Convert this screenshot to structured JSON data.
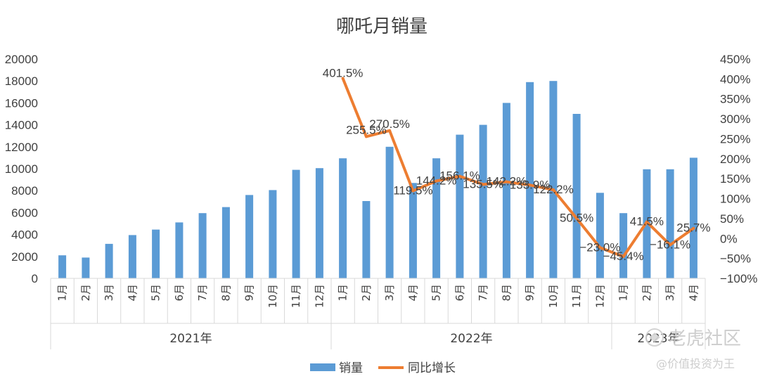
{
  "chart_data": {
    "type": "bar",
    "title": "哪吒月销量",
    "groups": [
      {
        "label": "2021年",
        "months": [
          "1月",
          "2月",
          "3月",
          "4月",
          "5月",
          "6月",
          "7月",
          "8月",
          "9月",
          "10月",
          "11月",
          "12月"
        ]
      },
      {
        "label": "2022年",
        "months": [
          "1月",
          "2月",
          "3月",
          "4月",
          "5月",
          "6月",
          "7月",
          "8月",
          "9月",
          "10月",
          "11月",
          "12月"
        ]
      },
      {
        "label": "2023年",
        "months": [
          "1月",
          "2月",
          "3月",
          "4月"
        ]
      }
    ],
    "series": [
      {
        "name": "销量",
        "type": "bar",
        "axis": "left",
        "color": "#5b9bd5",
        "values": [
          2100,
          1900,
          3150,
          3950,
          4450,
          5100,
          5950,
          6500,
          7600,
          8050,
          9900,
          10050,
          10950,
          7050,
          12000,
          8700,
          10950,
          13100,
          14000,
          16000,
          17900,
          18000,
          15000,
          7800,
          5950,
          9950,
          9950,
          11000
        ]
      },
      {
        "name": "同比增长",
        "type": "line",
        "axis": "right",
        "color": "#ed7d31",
        "values": [
          null,
          null,
          null,
          null,
          null,
          null,
          null,
          null,
          null,
          null,
          null,
          null,
          401.5,
          255.5,
          270.5,
          119.5,
          144.2,
          156.1,
          135.5,
          142.2,
          133.9,
          122.2,
          50.5,
          -23.0,
          -45.4,
          41.5,
          -16.1,
          25.7
        ],
        "labels": [
          null,
          null,
          null,
          null,
          null,
          null,
          null,
          null,
          null,
          null,
          null,
          null,
          "401.5%",
          "255.5%",
          "270.5%",
          "119.5%",
          "144.2%",
          "156.1%",
          "135.5%",
          "142.2%",
          "133.9%",
          "122.2%",
          "50.5%",
          "−23.0%",
          "−45.4%",
          "41.5%",
          "−16.1%",
          "25.7%"
        ]
      }
    ],
    "y_left": {
      "min": 0,
      "max": 20000,
      "ticks": [
        "0",
        "2000",
        "4000",
        "6000",
        "8000",
        "10000",
        "12000",
        "14000",
        "16000",
        "18000",
        "20000"
      ]
    },
    "y_right": {
      "min": -100,
      "max": 450,
      "ticks": [
        "−100%",
        "−50%",
        "0%",
        "50%",
        "100%",
        "150%",
        "200%",
        "250%",
        "300%",
        "350%",
        "400%",
        "450%"
      ]
    },
    "grid": false,
    "legend_position": "bottom"
  },
  "watermark": {
    "logo_text": "老虎社区",
    "sub_text": "@价值投资为王"
  }
}
